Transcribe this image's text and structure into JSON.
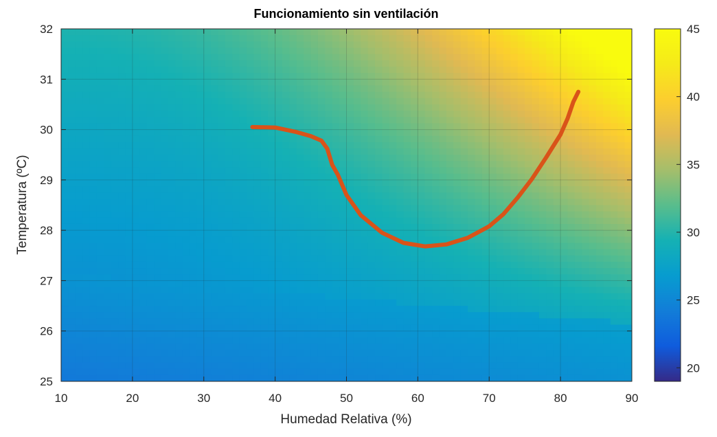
{
  "chart_data": {
    "type": "heatmap",
    "title": "Funcionamiento sin ventilación",
    "xlabel": "Humedad Relativa (%)",
    "ylabel": "Temperatura (ºC)",
    "xlim": [
      10,
      90
    ],
    "ylim": [
      25,
      32
    ],
    "xticks": [
      10,
      20,
      30,
      40,
      50,
      60,
      70,
      80,
      90
    ],
    "yticks": [
      25,
      26,
      27,
      28,
      29,
      30,
      31,
      32
    ],
    "grid": true,
    "colormap": "parula",
    "colorbar": {
      "clim": [
        19,
        45
      ],
      "ticks": [
        20,
        25,
        30,
        35,
        40,
        45
      ]
    },
    "overlay_series": {
      "type": "line",
      "color": "#D95319",
      "x": [
        36.8,
        40,
        43,
        45,
        46.5,
        47.3,
        48,
        48.8,
        50,
        52,
        55,
        58,
        61,
        64,
        67,
        70,
        72,
        74,
        76,
        78,
        80,
        81,
        81.8,
        82.5
      ],
      "y": [
        30.05,
        30.04,
        29.95,
        29.87,
        29.78,
        29.62,
        29.3,
        29.1,
        28.7,
        28.3,
        27.95,
        27.75,
        27.68,
        27.72,
        27.85,
        28.08,
        28.32,
        28.65,
        29.02,
        29.45,
        29.9,
        30.22,
        30.55,
        30.75
      ]
    }
  }
}
